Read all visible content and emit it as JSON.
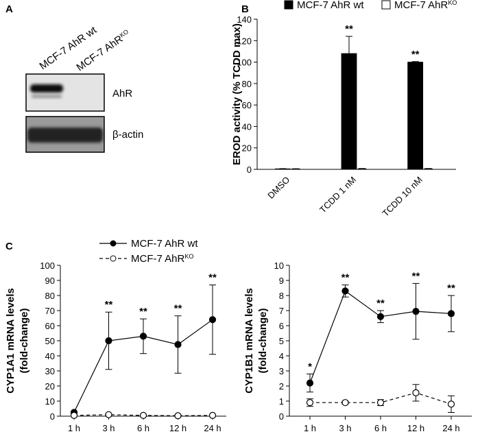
{
  "panel_a": {
    "label": "A",
    "lanes": [
      {
        "name": "MCF-7 AhR wt"
      },
      {
        "name": "MCF-7 AhR",
        "superscript": "KO"
      }
    ],
    "blots": [
      "AhR",
      "β-actin"
    ]
  },
  "chart_data": [
    {
      "type": "bar",
      "panel": "B",
      "ylabel": [
        "EROD activity (% TCDD max)"
      ],
      "categories": [
        "DMSO",
        "TCDD 1 nM",
        "TCDD 10 nM"
      ],
      "series": [
        {
          "name": "MCF-7 AhR wt",
          "color": "#000000",
          "values": [
            0.5,
            108,
            100
          ],
          "errors": [
            0.2,
            16,
            0.5
          ],
          "significance": [
            null,
            "**",
            "**"
          ]
        },
        {
          "name": "MCF-7 AhR",
          "superscript": "KO",
          "color": "#ffffff",
          "values": [
            0.4,
            0.5,
            0.5
          ],
          "errors": [
            0.2,
            0.3,
            0.3
          ]
        }
      ],
      "ylim": [
        0,
        140
      ],
      "yticks": [
        0,
        20,
        40,
        60,
        80,
        100,
        120,
        140
      ]
    },
    {
      "type": "line",
      "panel": "C",
      "ylabel": [
        "CYP1A1 mRNA levels",
        "(fold-change)"
      ],
      "categories": [
        "1 h",
        "3 h",
        "6 h",
        "12 h",
        "24 h"
      ],
      "series": [
        {
          "name": "MCF-7 AhR wt",
          "color": "#000000",
          "marker_fill": "#000000",
          "linestyle": "solid",
          "values": [
            2.5,
            50,
            53,
            47.5,
            64
          ],
          "errors": [
            0.5,
            19,
            11.5,
            19,
            23
          ],
          "significance": [
            null,
            "**",
            "**",
            "**",
            "**"
          ]
        },
        {
          "name": "MCF-7 AhR",
          "superscript": "KO",
          "color": "#000000",
          "marker_fill": "#ffffff",
          "linestyle": "dashed",
          "values": [
            0.5,
            1,
            0.5,
            0.3,
            0.5
          ],
          "errors": [
            0.3,
            0.5,
            0.3,
            0.2,
            0.3
          ]
        }
      ],
      "ylim": [
        0,
        100
      ],
      "yticks": [
        0,
        10,
        20,
        30,
        40,
        50,
        60,
        70,
        80,
        90,
        100
      ]
    },
    {
      "type": "line",
      "ylabel": [
        "CYP1B1 mRNA levels",
        "(fold-change)"
      ],
      "categories": [
        "1 h",
        "3 h",
        "6 h",
        "12 h",
        "24 h"
      ],
      "series": [
        {
          "color": "#000000",
          "marker_fill": "#000000",
          "linestyle": "solid",
          "values": [
            2.2,
            8.3,
            6.6,
            6.95,
            6.8
          ],
          "errors": [
            0.6,
            0.4,
            0.4,
            1.85,
            1.2
          ],
          "significance": [
            "*",
            "**",
            "**",
            "**",
            "**"
          ]
        },
        {
          "color": "#000000",
          "marker_fill": "#ffffff",
          "linestyle": "dashed",
          "values": [
            0.9,
            0.9,
            0.9,
            1.55,
            0.8
          ],
          "errors": [
            0.25,
            0.1,
            0.2,
            0.55,
            0.55
          ]
        }
      ],
      "ylim": [
        0,
        10
      ],
      "yticks": [
        0,
        1,
        2,
        3,
        4,
        5,
        6,
        7,
        8,
        9,
        10
      ]
    }
  ]
}
